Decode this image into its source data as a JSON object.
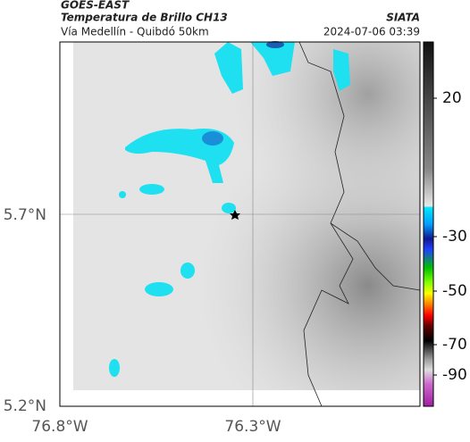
{
  "header": {
    "satellite": "GOES-EAST",
    "title": "Temperatura de Brillo CH13",
    "source": "SIATA",
    "subtitle": "Vía Medellín - Quibdó 50km",
    "datetime": "2024-07-06 03:39"
  },
  "axes": {
    "lat_labels": [
      "5.7°N",
      "5.2°N"
    ],
    "lon_labels": [
      "76.8°W",
      "76.3°W"
    ]
  },
  "colorbar": {
    "labels": [
      "20",
      "-30",
      "-50",
      "-70",
      "-90"
    ]
  }
}
